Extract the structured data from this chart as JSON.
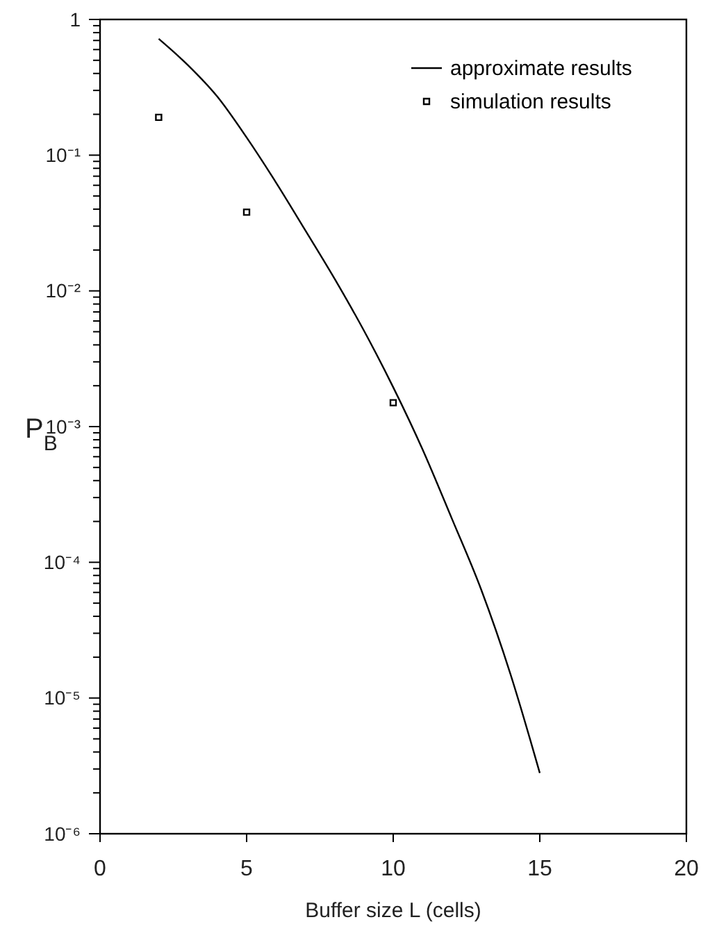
{
  "chart_data": {
    "type": "line",
    "xlabel": "Buffer size  L (cells)",
    "ylabel": "P$_{B}$",
    "log": "y",
    "grid": false,
    "legend": "top right",
    "xlim": [
      0,
      20
    ],
    "xticks": [
      0,
      5,
      10,
      15,
      20
    ],
    "ylim": [
      1e-06,
      1
    ],
    "yticks": [
      {
        "value": 1e-06,
        "label": "10⁻⁶"
      },
      {
        "value": 2e-06,
        "label": null
      },
      {
        "value": 3e-06,
        "label": null
      },
      {
        "value": 4e-06,
        "label": null
      },
      {
        "value": 5e-06,
        "label": null
      },
      {
        "value": 6e-06,
        "label": null
      },
      {
        "value": 7e-06,
        "label": null
      },
      {
        "value": 8e-06,
        "label": null
      },
      {
        "value": 9e-06,
        "label": null
      },
      {
        "value": 1e-05,
        "label": "10⁻⁵"
      },
      {
        "value": 2e-05,
        "label": null
      },
      {
        "value": 3e-05,
        "label": null
      },
      {
        "value": 4e-05,
        "label": null
      },
      {
        "value": 5e-05,
        "label": null
      },
      {
        "value": 6e-05,
        "label": null
      },
      {
        "value": 7e-05,
        "label": null
      },
      {
        "value": 8e-05,
        "label": null
      },
      {
        "value": 9e-05,
        "label": null
      },
      {
        "value": 0.0001,
        "label": "10⁻⁴"
      },
      {
        "value": 0.0002,
        "label": null
      },
      {
        "value": 0.0003,
        "label": null
      },
      {
        "value": 0.0004,
        "label": null
      },
      {
        "value": 0.0005,
        "label": null
      },
      {
        "value": 0.0006,
        "label": null
      },
      {
        "value": 0.0007,
        "label": null
      },
      {
        "value": 0.0008,
        "label": null
      },
      {
        "value": 0.0009,
        "label": null
      },
      {
        "value": 0.001,
        "label": "10⁻³"
      },
      {
        "value": 0.002,
        "label": null
      },
      {
        "value": 0.003,
        "label": null
      },
      {
        "value": 0.004,
        "label": null
      },
      {
        "value": 0.005,
        "label": null
      },
      {
        "value": 0.006,
        "label": null
      },
      {
        "value": 0.007,
        "label": null
      },
      {
        "value": 0.008,
        "label": null
      },
      {
        "value": 0.009,
        "label": null
      },
      {
        "value": 0.01,
        "label": "10⁻²"
      },
      {
        "value": 0.02,
        "label": null
      },
      {
        "value": 0.03,
        "label": null
      },
      {
        "value": 0.04,
        "label": null
      },
      {
        "value": 0.05,
        "label": null
      },
      {
        "value": 0.06,
        "label": null
      },
      {
        "value": 0.07,
        "label": null
      },
      {
        "value": 0.08,
        "label": null
      },
      {
        "value": 0.09,
        "label": null
      },
      {
        "value": 0.1,
        "label": "10⁻¹"
      },
      {
        "value": 0.2,
        "label": null
      },
      {
        "value": 0.3,
        "label": null
      },
      {
        "value": 0.4,
        "label": null
      },
      {
        "value": 0.5,
        "label": null
      },
      {
        "value": 0.6,
        "label": null
      },
      {
        "value": 0.7,
        "label": null
      },
      {
        "value": 0.8,
        "label": null
      },
      {
        "value": 0.9,
        "label": null
      },
      {
        "value": 1,
        "label": "1"
      }
    ],
    "series": [
      {
        "name": "approximate results",
        "color": "#000000",
        "marker": "none",
        "line_style": "solid",
        "x": [
          2,
          3,
          4,
          5,
          6,
          7,
          8,
          9,
          10,
          11,
          12,
          13,
          14,
          15
        ],
        "values": [
          0.72,
          0.46,
          0.27,
          0.135,
          0.063,
          0.028,
          0.0123,
          0.0051,
          0.00195,
          0.00068,
          0.00021,
          6.3e-05,
          1.5e-05,
          2.8e-06
        ]
      },
      {
        "name": "simulation results",
        "type": "scatter",
        "color": "#000000",
        "marker": "square",
        "x": [
          2,
          5,
          10
        ],
        "values": [
          0.19,
          0.038,
          0.0015
        ]
      }
    ]
  }
}
